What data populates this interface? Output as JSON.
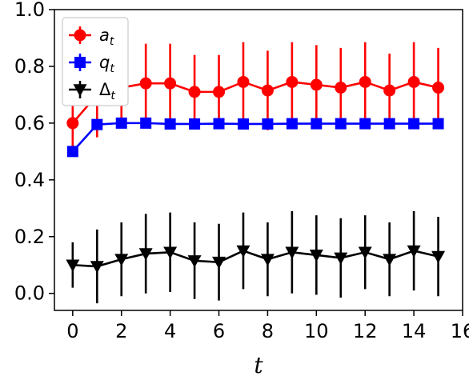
{
  "chart_data": {
    "type": "line",
    "xlabel": "t",
    "ylabel": "",
    "xlim": [
      -0.75,
      16
    ],
    "ylim": [
      -0.06,
      1.0
    ],
    "xticks": [
      0,
      2,
      4,
      6,
      8,
      10,
      12,
      14,
      16
    ],
    "yticks": [
      0.0,
      0.2,
      0.4,
      0.6,
      0.8,
      1.0
    ],
    "x": [
      0,
      1,
      2,
      3,
      4,
      5,
      6,
      7,
      8,
      9,
      10,
      11,
      12,
      13,
      14,
      15
    ],
    "grid": false,
    "legend_position": "top-left",
    "series": [
      {
        "name": "a",
        "subscript": "t",
        "color": "#ff0000",
        "marker": "circle",
        "values": [
          0.6,
          0.7,
          0.725,
          0.74,
          0.74,
          0.71,
          0.71,
          0.745,
          0.715,
          0.745,
          0.735,
          0.725,
          0.745,
          0.715,
          0.745,
          0.725
        ],
        "errors": [
          0.09,
          0.15,
          0.14,
          0.14,
          0.14,
          0.13,
          0.13,
          0.14,
          0.14,
          0.14,
          0.14,
          0.14,
          0.14,
          0.13,
          0.14,
          0.14
        ]
      },
      {
        "name": "q",
        "subscript": "t",
        "color": "#0000ff",
        "marker": "square",
        "values": [
          0.5,
          0.595,
          0.6,
          0.6,
          0.597,
          0.597,
          0.598,
          0.597,
          0.597,
          0.598,
          0.598,
          0.598,
          0.598,
          0.598,
          0.598,
          0.598
        ],
        "errors": [
          0.005,
          0.01,
          0.005,
          0.005,
          0.005,
          0.005,
          0.005,
          0.005,
          0.005,
          0.005,
          0.005,
          0.005,
          0.005,
          0.005,
          0.005,
          0.005
        ]
      },
      {
        "name": "Δ",
        "subscript": "t",
        "color": "#000000",
        "marker": "triangle-down",
        "values": [
          0.1,
          0.095,
          0.12,
          0.14,
          0.145,
          0.115,
          0.11,
          0.15,
          0.12,
          0.145,
          0.135,
          0.125,
          0.145,
          0.12,
          0.15,
          0.13
        ],
        "errors": [
          0.08,
          0.13,
          0.13,
          0.14,
          0.14,
          0.135,
          0.135,
          0.135,
          0.13,
          0.145,
          0.14,
          0.14,
          0.13,
          0.13,
          0.14,
          0.14
        ]
      }
    ]
  }
}
